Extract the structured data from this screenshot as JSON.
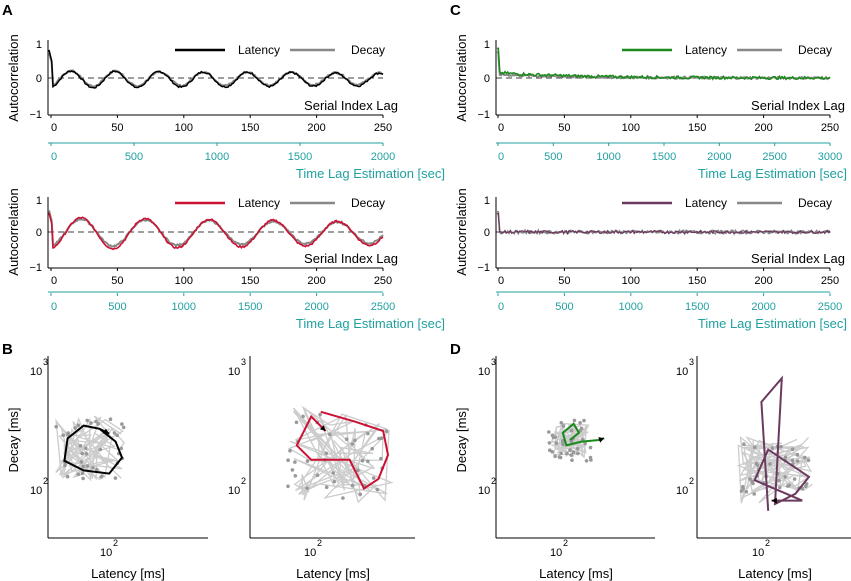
{
  "panels": {
    "A": "A",
    "B": "B",
    "C": "C",
    "D": "D"
  },
  "colors": {
    "A_top_latency": "#000000",
    "A_bottom_latency": "#cc1133",
    "C_top_latency": "#1a8a1a",
    "C_bottom_latency": "#6b3a5e",
    "decay": "#888888",
    "teal_axis": "#21a0a0",
    "scatter": "#999999",
    "trajectory_bg": "#cccccc"
  },
  "labels": {
    "autocorrelation": "Autocorrelation",
    "serial_index_lag": "Serial Index Lag",
    "time_lag_estimation": "Time Lag Estimation [sec]",
    "latency": "Latency",
    "decay": "Decay",
    "decay_ms": "Decay [ms]",
    "latency_ms": "Latency [ms]",
    "log_base": "10",
    "exp2": "2",
    "exp3": "3"
  },
  "chart_data": [
    {
      "type": "line",
      "id": "A-top",
      "panel": "A",
      "xlabel": "Serial Index Lag",
      "ylabel": "Autocorrelation",
      "xlim": [
        0,
        250
      ],
      "ylim": [
        -1,
        1
      ],
      "x_ticks": [
        "0",
        "50",
        "100",
        "150",
        "200",
        "250"
      ],
      "y_ticks": [
        "1",
        "0",
        "−1"
      ],
      "secondary_xlabel": "Time Lag Estimation [sec]",
      "secondary_x_ticks": [
        "0",
        "500",
        "1000",
        "1500",
        "2000"
      ],
      "legend": [
        "Latency",
        "Decay"
      ],
      "series": [
        {
          "name": "Latency",
          "kind": "damped_oscillation",
          "period": 33,
          "amplitude": 0.24,
          "offset": -0.04,
          "initial": 0.78
        },
        {
          "name": "Decay",
          "kind": "damped_oscillation",
          "period": 33,
          "amplitude": 0.22,
          "offset": -0.02,
          "initial": 0.72
        }
      ]
    },
    {
      "type": "line",
      "id": "A-bottom",
      "panel": "A",
      "xlabel": "Serial Index Lag",
      "ylabel": "Autocorrelation",
      "xlim": [
        0,
        250
      ],
      "ylim": [
        -1,
        1
      ],
      "x_ticks": [
        "0",
        "50",
        "100",
        "150",
        "200",
        "250"
      ],
      "y_ticks": [
        "1",
        "0",
        "−1"
      ],
      "secondary_xlabel": "Time Lag Estimation [sec]",
      "secondary_x_ticks": [
        "0",
        "500",
        "1000",
        "1500",
        "2000",
        "2500"
      ],
      "legend": [
        "Latency",
        "Decay"
      ],
      "series": [
        {
          "name": "Latency",
          "kind": "damped_oscillation",
          "period": 48,
          "amplitude": 0.46,
          "offset": -0.04,
          "initial": 0.55
        },
        {
          "name": "Decay",
          "kind": "damped_oscillation",
          "period": 48,
          "amplitude": 0.4,
          "offset": -0.02,
          "initial": 0.62
        }
      ]
    },
    {
      "type": "line",
      "id": "C-top",
      "panel": "C",
      "xlabel": "Serial Index Lag",
      "ylabel": "Autocorrelation",
      "xlim": [
        0,
        250
      ],
      "ylim": [
        -1,
        1
      ],
      "x_ticks": [
        "0",
        "50",
        "100",
        "150",
        "200",
        "250"
      ],
      "y_ticks": [
        "1",
        "0",
        "−1"
      ],
      "secondary_xlabel": "Time Lag Estimation [sec]",
      "secondary_x_ticks": [
        "0",
        "500",
        "1000",
        "1500",
        "2000",
        "2500",
        "3000"
      ],
      "legend": [
        "Latency",
        "Decay"
      ],
      "series": [
        {
          "name": "Latency",
          "kind": "slow_decay_noise",
          "start": 0.8,
          "tail": 0.15,
          "noise": 0.04
        },
        {
          "name": "Decay",
          "kind": "slow_decay_noise",
          "start": 0.7,
          "tail": 0.1,
          "noise": 0.03
        }
      ]
    },
    {
      "type": "line",
      "id": "C-bottom",
      "panel": "C",
      "xlabel": "Serial Index Lag",
      "ylabel": "Autocorrelation",
      "xlim": [
        0,
        250
      ],
      "ylim": [
        -1,
        1
      ],
      "x_ticks": [
        "0",
        "50",
        "100",
        "150",
        "200",
        "250"
      ],
      "y_ticks": [
        "1",
        "0",
        "−1"
      ],
      "secondary_xlabel": "Time Lag Estimation [sec]",
      "secondary_x_ticks": [
        "0",
        "500",
        "1000",
        "1500",
        "2000",
        "2500"
      ],
      "legend": [
        "Latency",
        "Decay"
      ],
      "series": [
        {
          "name": "Latency",
          "kind": "noise",
          "start": 0.5,
          "noise": 0.04
        },
        {
          "name": "Decay",
          "kind": "noise",
          "start": 0.6,
          "noise": 0.05
        }
      ]
    },
    {
      "type": "scatter",
      "id": "B-left",
      "panel": "B",
      "xlabel": "Latency [ms]",
      "ylabel": "Decay [ms]",
      "x_scale": "log",
      "y_scale": "log",
      "x_ticks": [
        "10^2"
      ],
      "y_ticks": [
        "10^3",
        "10^2"
      ],
      "trajectory_color": "#000000"
    },
    {
      "type": "scatter",
      "id": "B-right",
      "panel": "B",
      "xlabel": "Latency [ms]",
      "ylabel": "",
      "x_scale": "log",
      "y_scale": "log",
      "x_ticks": [
        "10^2"
      ],
      "y_ticks": [
        "10^3",
        "10^2"
      ],
      "trajectory_color": "#cc1133"
    },
    {
      "type": "scatter",
      "id": "D-left",
      "panel": "D",
      "xlabel": "Latency [ms]",
      "ylabel": "Decay [ms]",
      "x_scale": "log",
      "y_scale": "log",
      "x_ticks": [
        "10^2"
      ],
      "y_ticks": [
        "10^3",
        "10^2"
      ],
      "trajectory_color": "#1a8a1a"
    },
    {
      "type": "scatter",
      "id": "D-right",
      "panel": "D",
      "xlabel": "Latency [ms]",
      "ylabel": "",
      "x_scale": "log",
      "y_scale": "log",
      "x_ticks": [
        "10^2"
      ],
      "y_ticks": [
        "10^3",
        "10^2"
      ],
      "trajectory_color": "#6b3a5e"
    }
  ]
}
